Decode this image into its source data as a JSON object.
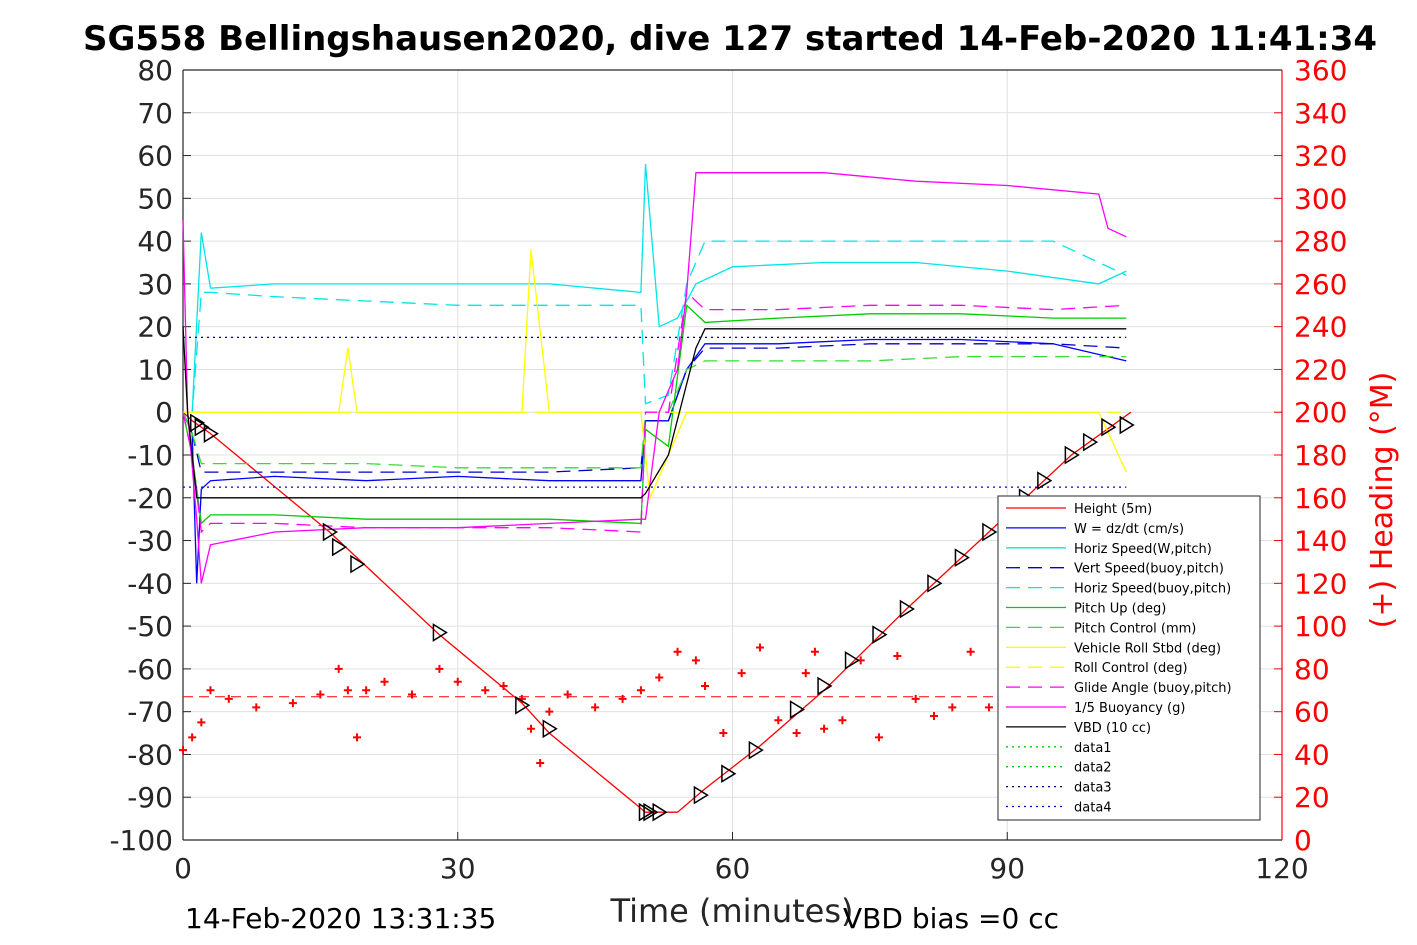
{
  "chart_data": {
    "type": "line",
    "title": "SG558 Bellingshausen2020, dive 127 started 14-Feb-2020 11:41:34",
    "xlabel": "Time (minutes)",
    "ylabel_right": "(+) Heading (°M)",
    "xlim": [
      0,
      120
    ],
    "ylim": [
      -100,
      80
    ],
    "ylim_right": [
      0,
      360
    ],
    "xticks": [
      "0",
      "30",
      "60",
      "90",
      "120"
    ],
    "yticks": [
      "80",
      "70",
      "60",
      "50",
      "40",
      "30",
      "20",
      "10",
      "0",
      "-10",
      "-20",
      "-30",
      "-40",
      "-50",
      "-60",
      "-70",
      "-80",
      "-90",
      "-100"
    ],
    "yticks_right": [
      "360",
      "340",
      "320",
      "300",
      "280",
      "260",
      "240",
      "220",
      "200",
      "180",
      "160",
      "140",
      "120",
      "100",
      "80",
      "60",
      "40",
      "20",
      "0"
    ],
    "grid": true,
    "legend_position": "lower-right",
    "footer_left": "14-Feb-2020 13:31:35",
    "footer_right": "VBD bias =0 cc",
    "series": [
      {
        "name": "Height (5m)",
        "color": "#ff0000",
        "style": "solid",
        "x": [
          0,
          1,
          3,
          16,
          28,
          37,
          40,
          50.5,
          52,
          54,
          57,
          63,
          70,
          79,
          88,
          97,
          103.5
        ],
        "y": [
          0,
          -2,
          -5,
          -28,
          -52,
          -68,
          -75,
          -93.5,
          -93.5,
          -93.5,
          -88,
          -78,
          -65,
          -46,
          -28,
          -10,
          0
        ]
      },
      {
        "name": "W = dz/dt (cm/s)",
        "color": "#0000ff",
        "style": "solid",
        "x": [
          0,
          1,
          1.5,
          2,
          3,
          10,
          20,
          30,
          40,
          50,
          50.5,
          53,
          55,
          57,
          65,
          75,
          85,
          95,
          103
        ],
        "y": [
          0,
          -5,
          -40,
          -18,
          -16,
          -15,
          -16,
          -15,
          -16,
          -16,
          -2,
          -2,
          10,
          16,
          16,
          17,
          17,
          16,
          12
        ]
      },
      {
        "name": "Horiz Speed(W,pitch)",
        "color": "#00e6e6",
        "style": "solid",
        "x": [
          0,
          1,
          2,
          3,
          10,
          20,
          30,
          40,
          50,
          50.5,
          52,
          54,
          56,
          60,
          70,
          80,
          90,
          100,
          103
        ],
        "y": [
          0,
          0,
          42,
          29,
          30,
          30,
          30,
          30,
          28,
          58,
          20,
          22,
          30,
          34,
          35,
          35,
          33,
          30,
          33
        ]
      },
      {
        "name": "Vert Speed(buoy,pitch)",
        "color": "#0000cc",
        "style": "dashed",
        "x": [
          0,
          1,
          2,
          3,
          10,
          20,
          30,
          40,
          50,
          50.5,
          53,
          55,
          57,
          65,
          75,
          85,
          95,
          103
        ],
        "y": [
          0,
          -5,
          -14,
          -14,
          -14,
          -14,
          -14,
          -14,
          -13,
          -2,
          -2,
          10,
          15,
          15,
          16,
          16,
          16,
          15
        ]
      },
      {
        "name": "Horiz Speed(buoy,pitch)",
        "color": "#00e6e6",
        "style": "dashed",
        "x": [
          0,
          1,
          2,
          3,
          10,
          20,
          30,
          40,
          50,
          50.5,
          53,
          55,
          57,
          65,
          75,
          85,
          95,
          103
        ],
        "y": [
          0,
          0,
          28,
          28,
          27,
          26,
          25,
          25,
          25,
          2,
          4,
          30,
          40,
          40,
          40,
          40,
          40,
          32
        ]
      },
      {
        "name": "Pitch Up (deg)",
        "color": "#00cc00",
        "style": "solid",
        "x": [
          0,
          1,
          2,
          3,
          10,
          20,
          30,
          40,
          50,
          50.5,
          53,
          55,
          57,
          65,
          75,
          85,
          95,
          103
        ],
        "y": [
          0,
          -10,
          -26,
          -24,
          -24,
          -25,
          -25,
          -25,
          -26,
          -4,
          -8,
          25,
          21,
          22,
          23,
          23,
          22,
          22
        ]
      },
      {
        "name": "Pitch Control (mm)",
        "color": "#33dd33",
        "style": "dashed",
        "x": [
          0,
          1,
          2,
          3,
          10,
          20,
          30,
          40,
          50,
          50.5,
          53,
          55,
          57,
          65,
          75,
          85,
          95,
          103
        ],
        "y": [
          0,
          -5,
          -12,
          -12,
          -12,
          -12,
          -13,
          -13,
          -13,
          0,
          0,
          10,
          12,
          12,
          12,
          13,
          13,
          13
        ]
      },
      {
        "name": "Vehicle Roll Stbd (deg)",
        "color": "#ffff00",
        "style": "solid",
        "x": [
          0,
          2,
          10,
          17,
          18,
          19,
          30,
          37,
          38,
          40,
          50,
          51,
          55,
          56,
          60,
          70,
          80,
          90,
          100,
          103
        ],
        "y": [
          0,
          0,
          0,
          0,
          15,
          0,
          0,
          0,
          38,
          0,
          0,
          -20,
          0,
          0,
          0,
          0,
          0,
          0,
          0,
          -14
        ]
      },
      {
        "name": "Roll Control (deg)",
        "color": "#ffff00",
        "style": "dashed",
        "x": [
          0,
          2,
          10,
          17,
          19,
          30,
          37,
          40,
          50,
          51,
          55,
          60,
          70,
          80,
          90,
          100,
          103
        ],
        "y": [
          0,
          0,
          0,
          0,
          0,
          0,
          0,
          0,
          0,
          0,
          0,
          0,
          0,
          0,
          0,
          0,
          0
        ]
      },
      {
        "name": "Glide Angle (buoy,pitch)",
        "color": "#ff00ff",
        "style": "dashed",
        "x": [
          0,
          1,
          2,
          3,
          10,
          20,
          30,
          40,
          50,
          50.5,
          53,
          55,
          57,
          65,
          75,
          85,
          95,
          103
        ],
        "y": [
          0,
          -10,
          -28,
          -26,
          -26,
          -27,
          -27,
          -27,
          -28,
          0,
          0,
          28,
          24,
          24,
          25,
          25,
          24,
          25
        ]
      },
      {
        "name": "1/5 Buoyancy (g)",
        "color": "#ff00ff",
        "style": "solid",
        "x": [
          0,
          0.5,
          1.5,
          2,
          3,
          10,
          20,
          30,
          40,
          50,
          50.5,
          52,
          54,
          55,
          56,
          60,
          70,
          80,
          90,
          100,
          101,
          103
        ],
        "y": [
          45,
          0,
          -25,
          -40,
          -31,
          -28,
          -27,
          -27,
          -26,
          -25,
          -25,
          0,
          10,
          28,
          56,
          56,
          56,
          54,
          53,
          51,
          43,
          41
        ]
      },
      {
        "name": "VBD (10 cc)",
        "color": "#000000",
        "style": "solid",
        "x": [
          0,
          0.5,
          1.5,
          2,
          50,
          50.5,
          53,
          56,
          57,
          103
        ],
        "y": [
          20,
          0,
          -20,
          -20,
          -20,
          -19,
          -10,
          15,
          19.5,
          19.5
        ]
      },
      {
        "name": "data1",
        "color": "#00cc00",
        "style": "dotted",
        "x": [],
        "y": []
      },
      {
        "name": "data2",
        "color": "#00cc00",
        "style": "dotted",
        "x": [],
        "y": []
      },
      {
        "name": "data3",
        "color": "#000080",
        "style": "dotted",
        "x": [
          0,
          103
        ],
        "y": [
          17.5,
          17.5
        ]
      },
      {
        "name": "data4",
        "color": "#0000cc",
        "style": "dotted",
        "x": [
          0,
          103
        ],
        "y": [
          -17.5,
          -17.5
        ]
      }
    ],
    "heading": {
      "name": "Heading",
      "color": "#ff0000",
      "marker": "+",
      "desired": 67,
      "x": [
        0,
        1,
        2,
        3,
        5,
        8,
        12,
        15,
        17,
        18,
        19,
        20,
        22,
        25,
        28,
        30,
        33,
        35,
        37,
        38,
        39,
        40,
        42,
        45,
        48,
        50,
        52,
        54,
        56,
        57,
        59,
        61,
        63,
        65,
        67,
        68,
        69,
        70,
        72,
        74,
        76,
        78,
        80,
        82,
        84,
        86,
        88,
        90,
        92
      ],
      "y": [
        42,
        48,
        55,
        70,
        66,
        62,
        64,
        68,
        80,
        70,
        48,
        70,
        74,
        68,
        80,
        74,
        70,
        72,
        66,
        52,
        36,
        60,
        68,
        62,
        66,
        70,
        76,
        88,
        84,
        72,
        50,
        78,
        90,
        56,
        50,
        78,
        88,
        52,
        56,
        84,
        48,
        86,
        66,
        58,
        62,
        88,
        62,
        72,
        78
      ]
    },
    "markers": {
      "color": "#000000",
      "x": [
        1.5,
        2,
        3,
        16,
        17,
        19,
        28,
        37,
        40,
        50.5,
        51,
        52,
        56.5,
        59.5,
        62.5,
        67,
        70,
        73,
        76,
        79,
        82,
        85,
        88,
        90,
        92,
        94,
        97,
        99,
        101,
        103
      ],
      "y": [
        -2.5,
        -3.5,
        -5,
        -28,
        -31.5,
        -35.5,
        -51.5,
        -68.5,
        -74,
        -93.5,
        -93.5,
        -93.5,
        -89.5,
        -84.5,
        -79,
        -69.5,
        -64,
        -58,
        -52,
        -46,
        -40,
        -34,
        -28,
        -24,
        -20,
        -16,
        -10,
        -7,
        -3.5,
        -3
      ]
    }
  }
}
